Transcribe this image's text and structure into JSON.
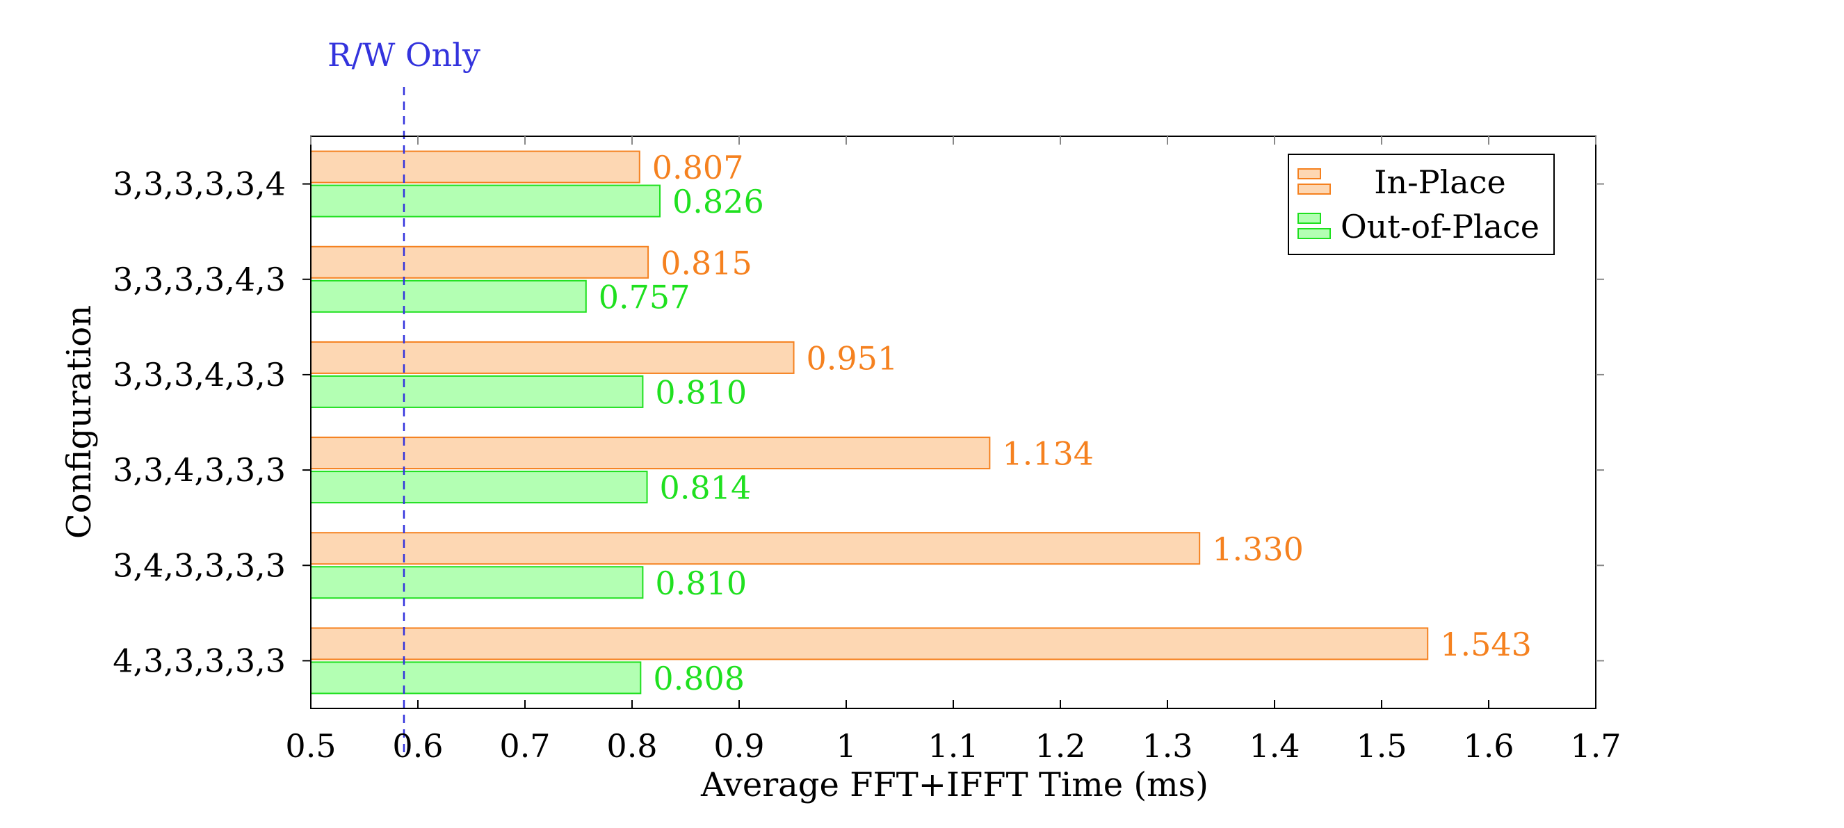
{
  "chart_data": {
    "type": "bar",
    "orientation": "horizontal",
    "title": "",
    "xlabel": "Average FFT+IFFT Time (ms)",
    "ylabel": "Configuration",
    "xlim": [
      0.5,
      1.7
    ],
    "x_ticks": [
      "0.5",
      "0.6",
      "0.7",
      "0.8",
      "0.9",
      "1",
      "1.1",
      "1.2",
      "1.3",
      "1.4",
      "1.5",
      "1.6",
      "1.7"
    ],
    "x_tick_values": [
      0.5,
      0.6,
      0.7,
      0.8,
      0.9,
      1.0,
      1.1,
      1.2,
      1.3,
      1.4,
      1.5,
      1.6,
      1.7
    ],
    "categories": [
      "3,3,3,3,3,4",
      "3,3,3,3,4,3",
      "3,3,3,4,3,3",
      "3,3,4,3,3,3",
      "3,4,3,3,3,3",
      "4,3,3,3,3,3"
    ],
    "series": [
      {
        "name": "In-Place",
        "values": [
          0.807,
          0.815,
          0.951,
          1.134,
          1.33,
          1.543
        ],
        "labels": [
          "0.807",
          "0.815",
          "0.951",
          "1.134",
          "1.330",
          "1.543"
        ],
        "fill": "#fdd7b3",
        "stroke": "#f5811f",
        "label_color": "#f5811f"
      },
      {
        "name": "Out-of-Place",
        "values": [
          0.826,
          0.757,
          0.81,
          0.814,
          0.81,
          0.808
        ],
        "labels": [
          "0.826",
          "0.757",
          "0.810",
          "0.814",
          "0.810",
          "0.808"
        ],
        "fill": "#b3ffb3",
        "stroke": "#1fe01f",
        "label_color": "#1fe01f"
      }
    ],
    "reference_line": {
      "label": "R/W Only",
      "value": 0.587,
      "color": "#3333dd",
      "style": "dashed"
    },
    "legend_position": "top-right",
    "grid": false
  }
}
